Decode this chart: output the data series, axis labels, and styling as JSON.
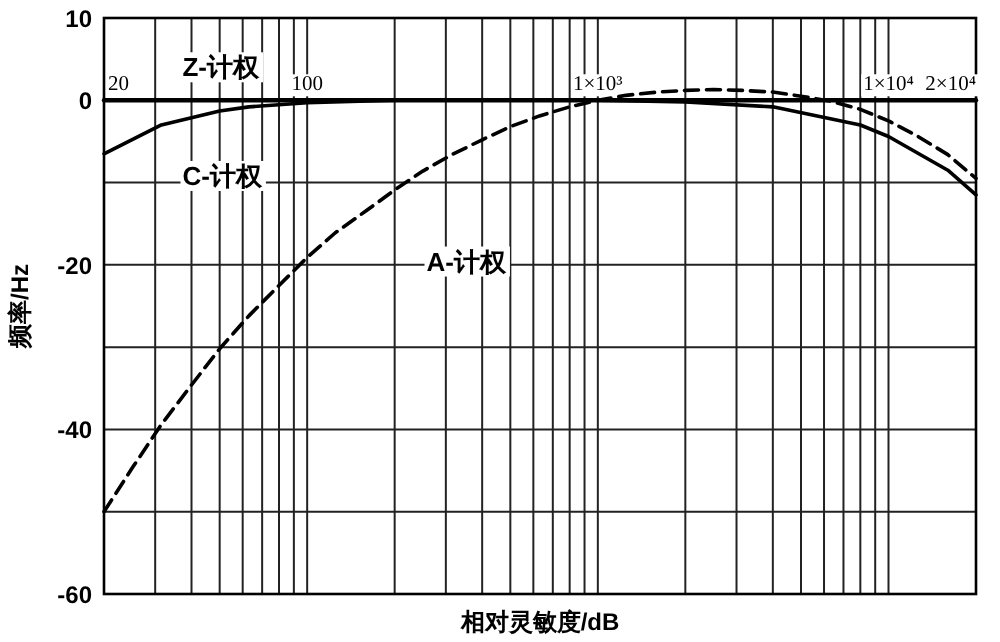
{
  "chart_data": {
    "type": "line",
    "xlabel": "相对灵敏度/dB",
    "ylabel": "频率/Hz",
    "log": "x",
    "grid": true,
    "legend": false,
    "xlim": [
      20,
      20000
    ],
    "ylim": [
      -60,
      10
    ],
    "xticks": [
      20,
      100,
      {
        "value": 1000,
        "label": "1×10³"
      },
      {
        "value": 10000,
        "label": "1×10⁴"
      },
      {
        "value": 20000,
        "label": "2×10⁴"
      }
    ],
    "yticks": [
      10,
      0,
      {
        "value": -10,
        "label": null
      },
      -20,
      {
        "value": -30,
        "label": null
      },
      -40,
      {
        "value": -50,
        "label": null
      },
      -60
    ],
    "series": [
      {
        "name": "Z-计权",
        "color": "#000000",
        "line_style": "solid",
        "x": [
          20,
          20000
        ],
        "values": [
          0,
          0
        ]
      },
      {
        "name": "C-计权",
        "color": "#000000",
        "line_style": "solid",
        "x": [
          20,
          31.5,
          50,
          63,
          100,
          200,
          1000,
          2000,
          4000,
          8000,
          10000,
          16000,
          20000
        ],
        "values": [
          -6.5,
          -3,
          -1.3,
          -0.8,
          -0.3,
          0,
          0,
          -0.2,
          -0.8,
          -3,
          -4.4,
          -8.5,
          -11.5
        ]
      },
      {
        "name": "A-计权",
        "color": "#000000",
        "line_style": "dashed",
        "x": [
          20,
          25,
          31.5,
          40,
          50,
          63,
          80,
          100,
          125,
          160,
          200,
          250,
          315,
          400,
          500,
          630,
          800,
          1000,
          1250,
          1600,
          2000,
          2500,
          3150,
          4000,
          5000,
          6300,
          8000,
          10000,
          12500,
          16000,
          20000
        ],
        "values": [
          -50,
          -44.7,
          -39.4,
          -34.6,
          -30.2,
          -26.2,
          -22.5,
          -19.1,
          -16.1,
          -13.4,
          -10.9,
          -8.6,
          -6.6,
          -4.8,
          -3.2,
          -1.9,
          -0.8,
          0,
          0.6,
          1,
          1.2,
          1.3,
          1.2,
          1,
          0.5,
          -0.1,
          -1.1,
          -2.5,
          -4.3,
          -6.6,
          -9.5
        ]
      }
    ]
  }
}
